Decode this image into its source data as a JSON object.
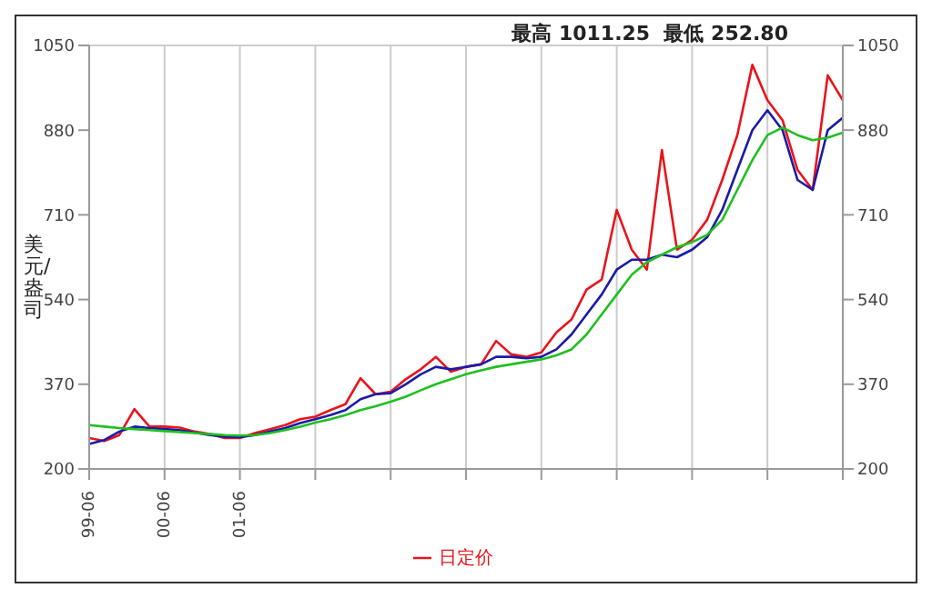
{
  "chart_data": {
    "type": "line",
    "subtitle": "最高 1011.25  最低 252.80",
    "ylabel": "美元/盎司",
    "categories": [
      "99-06",
      null,
      null,
      null,
      null,
      "00-06",
      null,
      null,
      null,
      null,
      "01-06",
      null,
      null,
      null,
      null,
      null,
      null,
      null,
      null,
      null,
      null,
      null,
      null,
      null,
      null,
      null,
      null,
      null,
      null,
      null,
      null,
      null,
      null,
      null,
      null,
      null,
      null,
      null,
      null,
      null,
      null,
      null,
      null,
      null,
      null,
      null,
      null,
      null,
      null,
      null,
      null
    ],
    "series": [
      {
        "name": "日定价",
        "color": "#e8141b",
        "values": [
          262,
          256,
          268,
          320,
          285,
          285,
          283,
          275,
          270,
          262,
          262,
          272,
          280,
          288,
          300,
          305,
          318,
          330,
          382,
          350,
          355,
          380,
          400,
          425,
          395,
          405,
          410,
          457,
          430,
          425,
          434,
          474,
          500,
          560,
          580,
          720,
          640,
          600,
          840,
          640,
          660,
          700,
          780,
          870,
          1011,
          940,
          900,
          800,
          760,
          990,
          940
        ]
      },
      {
        "color": "#1a1aa6",
        "values": [
          250,
          258,
          275,
          285,
          282,
          280,
          278,
          273,
          268,
          265,
          264,
          268,
          275,
          282,
          292,
          300,
          308,
          318,
          340,
          350,
          352,
          370,
          390,
          405,
          400,
          405,
          410,
          425,
          425,
          422,
          425,
          440,
          470,
          510,
          550,
          600,
          620,
          620,
          630,
          625,
          640,
          665,
          720,
          800,
          880,
          920,
          880,
          780,
          760,
          880,
          905
        ]
      },
      {
        "color": "#1fbf1f",
        "values": [
          288,
          285,
          282,
          280,
          278,
          276,
          274,
          272,
          270,
          268,
          267,
          268,
          272,
          278,
          285,
          293,
          300,
          308,
          318,
          326,
          335,
          345,
          358,
          370,
          380,
          390,
          398,
          405,
          410,
          415,
          420,
          428,
          440,
          470,
          510,
          550,
          590,
          615,
          630,
          645,
          655,
          670,
          700,
          760,
          820,
          870,
          885,
          870,
          860,
          865,
          875
        ]
      }
    ],
    "ylim": [
      200,
      1050
    ],
    "yticks": [
      200,
      370,
      540,
      710,
      880,
      1050
    ],
    "y2lim": [
      200,
      1050
    ],
    "y2ticks": [
      200,
      370,
      540,
      710,
      880,
      1050
    ],
    "grid": true,
    "legend": "bottom",
    "marker": "none",
    "line_style": "solid"
  }
}
